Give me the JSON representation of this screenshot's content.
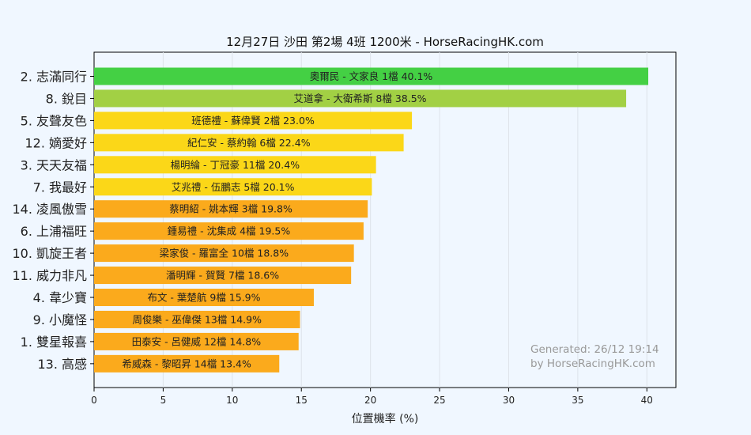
{
  "chart_data": {
    "type": "bar",
    "orientation": "horizontal",
    "title": "12月27日  沙田  第2場  4班  1200米 - HorseRacingHK.com",
    "xlabel": "位置機率 (%)",
    "ylabel": "",
    "xlim": [
      0,
      42.1
    ],
    "xticks": [
      "0",
      "5",
      "10",
      "15",
      "20",
      "25",
      "30",
      "35",
      "40"
    ],
    "grid": true,
    "categories": [
      "2. 志滿同行",
      "8. 銳目",
      "5. 友聲友色",
      "12. 嫡愛好",
      "3. 天天友福",
      "7. 我最好",
      "14. 凌風傲雪",
      "6. 上浦福旺",
      "10. 凱旋王者",
      "11. 威力非凡",
      "4. 韋少寶",
      "9. 小魔怪",
      "1. 雙星報喜",
      "13. 高感"
    ],
    "values": [
      40.1,
      38.5,
      23.0,
      22.4,
      20.4,
      20.1,
      19.8,
      19.5,
      18.8,
      18.6,
      15.9,
      14.9,
      14.8,
      13.4
    ],
    "bar_labels": [
      "奧爾民 - 文家良 1檔  40.1%",
      "艾道拿 - 大衛希斯 8檔  38.5%",
      "班德禮 - 蘇偉賢 2檔  23.0%",
      "紀仁安 - 蔡約翰 6檔  22.4%",
      "楊明綸 - 丁冠豪 11檔  20.4%",
      "艾兆禮 - 伍鵬志 5檔  20.1%",
      "蔡明紹 - 姚本輝 3檔  19.8%",
      "鍾易禮 - 沈集成 4檔  19.5%",
      "梁家俊 - 羅富全 10檔  18.8%",
      "潘明輝 - 賀賢 7檔  18.6%",
      "布文 - 葉楚航 9檔  15.9%",
      "周俊樂 - 巫偉傑 13檔  14.9%",
      "田泰安 - 呂健威 12檔  14.8%",
      "希威森 - 黎昭昇 14檔  13.4%"
    ],
    "colors": [
      "#44d044",
      "#a2d044",
      "#fbd718",
      "#fbd718",
      "#fbd718",
      "#fbd718",
      "#fbaa1c",
      "#fbaa1c",
      "#fbaa1c",
      "#fbaa1c",
      "#fbaa1c",
      "#fbaa1c",
      "#fbaa1c",
      "#fbaa1c"
    ],
    "annotation": [
      "Generated: 26/12 19:14",
      "by HorseRacingHK.com"
    ]
  }
}
